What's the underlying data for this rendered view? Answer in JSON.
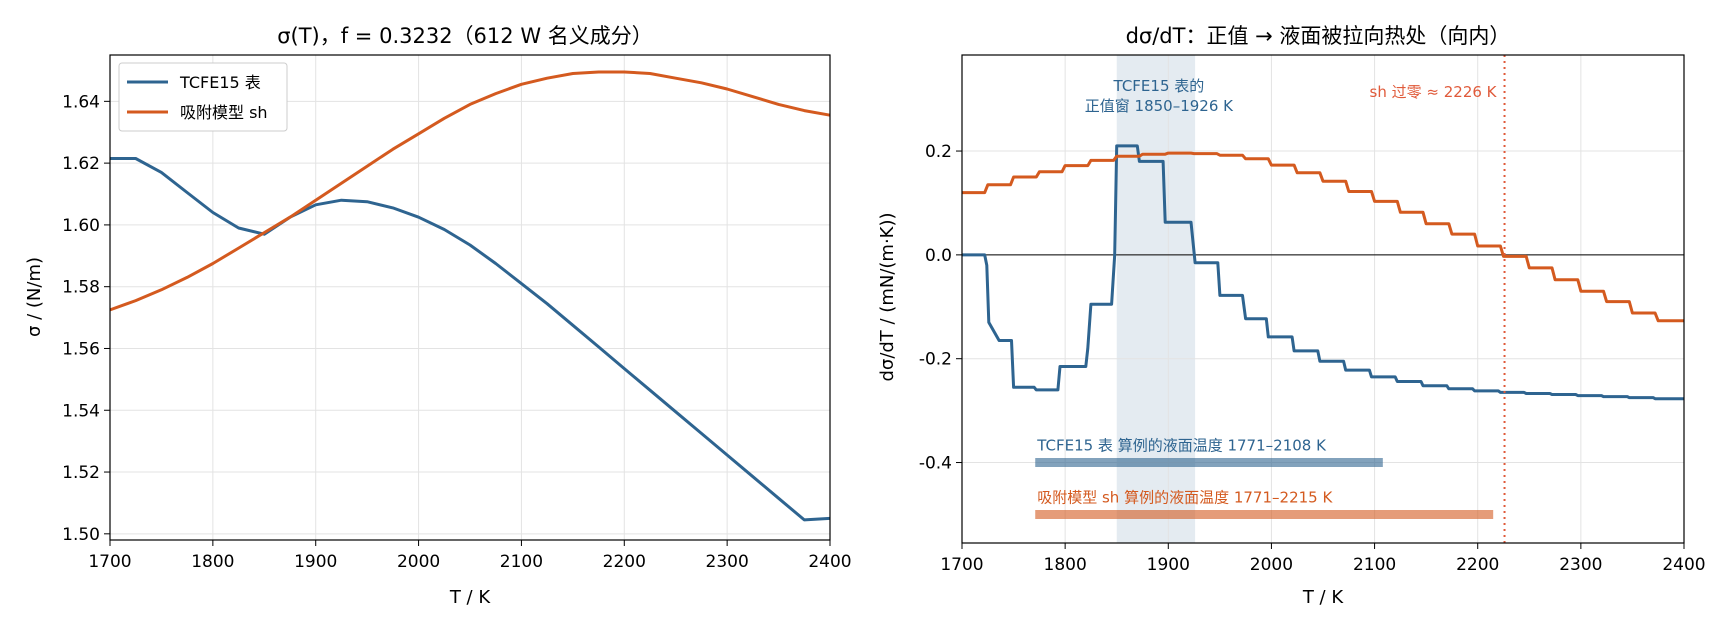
{
  "chart_data": [
    {
      "type": "line",
      "title": "σ(T)，f = 0.3232（612 W 名义成分）",
      "xlabel": "T / K",
      "ylabel": "σ / (N/m)",
      "xlim": [
        1700,
        2400
      ],
      "ylim": [
        1.498,
        1.655
      ],
      "xticks": [
        1700,
        1800,
        1900,
        2000,
        2100,
        2200,
        2300,
        2400
      ],
      "yticks": [
        1.5,
        1.52,
        1.54,
        1.56,
        1.58,
        1.6,
        1.62,
        1.64
      ],
      "yticklabels": [
        "1.50",
        "1.52",
        "1.54",
        "1.56",
        "1.58",
        "1.60",
        "1.62",
        "1.64"
      ],
      "grid": true,
      "legend_position": "top-left",
      "series": [
        {
          "name": "TCFE15 表",
          "color": "#2e6490",
          "x": [
            1700,
            1725,
            1750,
            1775,
            1800,
            1825,
            1850,
            1875,
            1900,
            1925,
            1950,
            1975,
            2000,
            2025,
            2050,
            2075,
            2100,
            2125,
            2150,
            2175,
            2200,
            2225,
            2250,
            2275,
            2300,
            2325,
            2350,
            2375,
            2400
          ],
          "y": [
            1.6215,
            1.6215,
            1.617,
            1.6105,
            1.604,
            1.599,
            1.597,
            1.6025,
            1.6065,
            1.608,
            1.6075,
            1.6055,
            1.6025,
            1.5985,
            1.5935,
            1.5875,
            1.581,
            1.5745,
            1.5675,
            1.5605,
            1.5535,
            1.5465,
            1.5395,
            1.5325,
            1.5255,
            1.5185,
            1.5115,
            1.5045,
            1.505
          ]
        },
        {
          "name": "吸附模型 sh",
          "color": "#d45a1f",
          "x": [
            1700,
            1725,
            1750,
            1775,
            1800,
            1825,
            1850,
            1875,
            1900,
            1925,
            1950,
            1975,
            2000,
            2025,
            2050,
            2075,
            2100,
            2125,
            2150,
            2175,
            2200,
            2225,
            2250,
            2275,
            2300,
            2325,
            2350,
            2375,
            2400
          ],
          "y": [
            1.5725,
            1.5755,
            1.579,
            1.583,
            1.5875,
            1.5925,
            1.5975,
            1.6025,
            1.608,
            1.6135,
            1.619,
            1.6245,
            1.6295,
            1.6345,
            1.639,
            1.6425,
            1.6455,
            1.6475,
            1.649,
            1.6495,
            1.6495,
            1.649,
            1.6475,
            1.646,
            1.644,
            1.6415,
            1.639,
            1.637,
            1.6355
          ]
        }
      ]
    },
    {
      "type": "line",
      "title": "dσ/dT：正值 → 液面被拉向热处（向内）",
      "xlabel": "T / K",
      "ylabel": "dσ/dT / (mN/(m·K))",
      "xlim": [
        1700,
        2400
      ],
      "ylim": [
        -0.555,
        0.385
      ],
      "xticks": [
        1700,
        1800,
        1900,
        2000,
        2100,
        2200,
        2300,
        2400
      ],
      "yticks": [
        0.2,
        0.0,
        -0.2,
        -0.4
      ],
      "yticklabels": [
        "0.2",
        "0.0",
        "-0.2",
        "-0.4"
      ],
      "grid": true,
      "zero_line": true,
      "series": [
        {
          "name": "TCFE15 表",
          "color": "#2e6490",
          "x": [
            1700,
            1722,
            1724,
            1726,
            1736,
            1748,
            1750,
            1770,
            1772,
            1793,
            1795,
            1820,
            1822,
            1825,
            1845,
            1848,
            1850,
            1870,
            1872,
            1895,
            1897,
            1910,
            1922,
            1926,
            1930,
            1948,
            1950,
            1972,
            1975,
            1995,
            1997,
            2020,
            2022,
            2045,
            2047,
            2070,
            2072,
            2095,
            2097,
            2120,
            2122,
            2145,
            2147,
            2170,
            2172,
            2195,
            2197,
            2220,
            2222,
            2245,
            2247,
            2270,
            2272,
            2295,
            2297,
            2320,
            2322,
            2345,
            2347,
            2370,
            2372,
            2400
          ],
          "y": [
            0.0,
            0.0,
            -0.02,
            -0.13,
            -0.165,
            -0.165,
            -0.255,
            -0.255,
            -0.26,
            -0.26,
            -0.215,
            -0.215,
            -0.18,
            -0.095,
            -0.095,
            0.0,
            0.21,
            0.21,
            0.18,
            0.18,
            0.063,
            0.063,
            0.063,
            -0.015,
            -0.015,
            -0.015,
            -0.078,
            -0.078,
            -0.123,
            -0.123,
            -0.158,
            -0.158,
            -0.185,
            -0.185,
            -0.205,
            -0.205,
            -0.222,
            -0.222,
            -0.235,
            -0.235,
            -0.244,
            -0.244,
            -0.252,
            -0.252,
            -0.258,
            -0.258,
            -0.262,
            -0.262,
            -0.265,
            -0.265,
            -0.267,
            -0.267,
            -0.269,
            -0.269,
            -0.271,
            -0.271,
            -0.273,
            -0.273,
            -0.275,
            -0.275,
            -0.277,
            -0.277
          ]
        },
        {
          "name": "吸附模型 sh",
          "color": "#d45a1f",
          "x": [
            1700,
            1722,
            1725,
            1747,
            1750,
            1772,
            1775,
            1797,
            1800,
            1822,
            1825,
            1847,
            1850,
            1872,
            1875,
            1897,
            1900,
            1922,
            1925,
            1947,
            1950,
            1972,
            1975,
            1997,
            2000,
            2022,
            2025,
            2047,
            2050,
            2072,
            2075,
            2097,
            2100,
            2122,
            2125,
            2147,
            2150,
            2172,
            2175,
            2197,
            2200,
            2222,
            2225,
            2247,
            2250,
            2272,
            2275,
            2297,
            2300,
            2322,
            2325,
            2347,
            2350,
            2372,
            2375,
            2400
          ],
          "y": [
            0.12,
            0.12,
            0.135,
            0.135,
            0.15,
            0.15,
            0.16,
            0.16,
            0.172,
            0.172,
            0.182,
            0.182,
            0.19,
            0.19,
            0.194,
            0.194,
            0.196,
            0.196,
            0.195,
            0.195,
            0.192,
            0.192,
            0.185,
            0.185,
            0.173,
            0.173,
            0.158,
            0.158,
            0.142,
            0.142,
            0.122,
            0.122,
            0.103,
            0.103,
            0.082,
            0.082,
            0.06,
            0.06,
            0.04,
            0.04,
            0.017,
            0.017,
            -0.003,
            -0.003,
            -0.025,
            -0.025,
            -0.048,
            -0.048,
            -0.07,
            -0.07,
            -0.09,
            -0.09,
            -0.112,
            -0.112,
            -0.127,
            -0.127
          ]
        }
      ],
      "shaded_band": {
        "x": [
          1850,
          1926
        ],
        "color": "#2e6490",
        "label": "TCFE15 表的\n正值窗 1850–1926 K"
      },
      "vline": {
        "x": 2226,
        "color": "#e05a3a",
        "label": "sh 过零 ≈ 2226 K"
      },
      "range_bars": [
        {
          "label": "TCFE15 表 算例的液面温度 1771–2108 K",
          "x": [
            1771,
            2108
          ],
          "y": -0.4,
          "color": "#2e6490"
        },
        {
          "label": "吸附模型 sh 算例的液面温度 1771–2215 K",
          "x": [
            1771,
            2215
          ],
          "y": -0.5,
          "color": "#d45a1f"
        }
      ]
    }
  ]
}
